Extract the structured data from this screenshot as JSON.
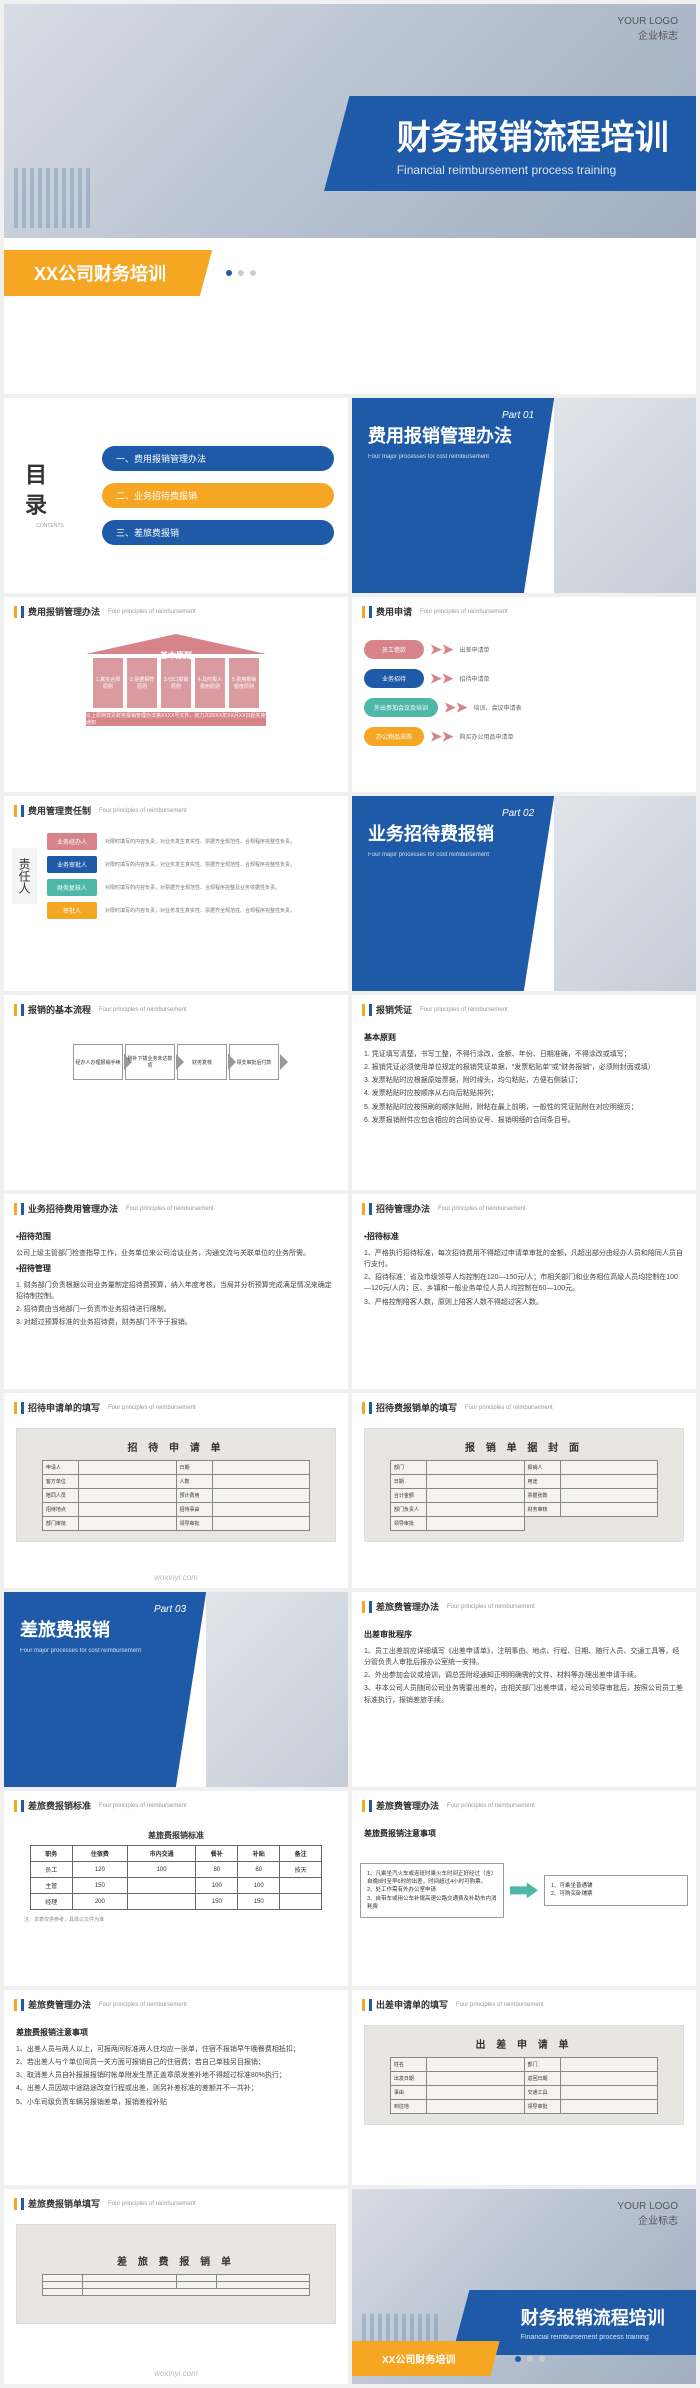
{
  "logo": {
    "line1": "YOUR LOGO",
    "line2": "企业标志"
  },
  "title": {
    "main": "财务报销流程培训",
    "sub": "Financial reimbursement process training",
    "company": "XX公司财务培训"
  },
  "toc": {
    "label": "目录",
    "contents": "CONTENTS",
    "items": [
      "一、费用报销管理办法",
      "二、业务招待费报销",
      "三、差旅费报销"
    ]
  },
  "parts": [
    {
      "num": "Part 01",
      "title": "费用报销管理办法",
      "sub": "Four major processes for cost reimbursement"
    },
    {
      "num": "Part 02",
      "title": "业务招待费报销",
      "sub": "Four major processes for cost reimbursement"
    },
    {
      "num": "Part 03",
      "title": "差旅费报销",
      "sub": "Four major processes for cost reimbursement"
    }
  ],
  "headers": {
    "s3": "费用报销管理办法",
    "s4": "费用申请",
    "s5": "费用管理责任制",
    "s7": "报销的基本流程",
    "s8": "报销凭证",
    "s9": "业务招待费用管理办法",
    "s10": "招待管理办法",
    "s11": "招待申请单的填写",
    "s12": "招待费报销单的填写",
    "s14": "差旅费管理办法",
    "s15": "差旅费报销标准",
    "s16": "差旅费管理办法",
    "s17": "差旅费管理办法",
    "s18": "出差申请单的填写",
    "s19": "差旅费报销单填写",
    "sub": "Four principles of reimbursement"
  },
  "building": {
    "roof": "基本原则",
    "pillars": [
      "1.真实合规原则",
      "2.票据相符原则",
      "3.归口报销原则",
      "4.及时报人费用原则",
      "5.费用报销额度原则"
    ],
    "base": "以上原则详见财务报销管理办法第XXXX号文件，效力2020XX年XX月XX日起实施通知"
  },
  "flow_apply": {
    "left": [
      {
        "t": "员工借款",
        "c": "#d6848a"
      },
      {
        "t": "业务招待",
        "c": "#1e5aa8"
      },
      {
        "t": "外出参加会议及培训",
        "c": "#4db8a8"
      },
      {
        "t": "办公物品采购",
        "c": "#f5a623"
      }
    ],
    "right": [
      "出差申请单",
      "招待申请单",
      "培训、会议申请表",
      "购买办公用品申请单"
    ]
  },
  "resp": {
    "label": "责任人",
    "rows": [
      {
        "tag": "业务经办人",
        "c": "#d6848a",
        "txt": "对限时填写的内容负责，对业务发生真实性、票据齐全规范性、合规程序完整性负责。"
      },
      {
        "tag": "业务审批人",
        "c": "#1e5aa8",
        "txt": "对限时填写的内容负责，对业务发生真实性、票据齐全规范性、合规程序完整性负责。"
      },
      {
        "tag": "财务复核人",
        "c": "#4db8a8",
        "txt": "对限时填写的内容负责，对票据齐全规范性、合规程序完整及业务依据性负责。"
      },
      {
        "tag": "审批人",
        "c": "#f5a623",
        "txt": "对限时填写的内容负责，对业务发生真实性、票据齐全规范性、合规程序完整性负责。"
      }
    ]
  },
  "steps": [
    "经办人办理报销手续",
    "剔补下拨业务未达款项",
    "财务复核",
    "领支审批后付款"
  ],
  "voucher": {
    "title": "基本原则",
    "items": [
      "1. 凭证填写清楚，书写工整，不得行涂改，金额、年份、日期准确，不得涂改或填写；",
      "2. 报销凭证必须使用单位规定的报销凭证单据，\"发票粘贴单\"或\"财务报销\"，必须附封面或填）",
      "3. 发票粘贴时应根据原始票据，附时缘头，均匀粘贴，方便右侧装订；",
      "4. 发票粘贴时应按顺序从右向后粘贴排列；",
      "5. 发票粘贴时应按照刷的顺序贴附，附粘在最上前明，一般性的凭证贴附在对应明细页；",
      "6. 发票报销附件应包含相应的合同协议号、报销明细的合同条目号。"
    ]
  },
  "entertain": {
    "h1": "▪招待范围",
    "p1": "公司上级主管部门检查指导工作，业务单位来公司洽谈业务，沟通交流与关联单位的业务所需。",
    "h2": "▪招待管理",
    "p2a": "1. 财务部门负责根据公司业务量制定招待费预算，纳入年度考核，当局并分析预算完成满足情况来确定招待制控制。",
    "p2b": "2. 招待费由当地部门一负责市业务招待进行限制。",
    "p2c": "3. 对超过预算标准的业务招待费，财务部门不予于报销。"
  },
  "entertain_rule": {
    "h": "▪招待标准",
    "p1": "1、严格执行招待标准，每次招待费用不得超过申请单审批的金额，凡超出部分由经办人员和陪同人员自行支付。",
    "p2": "2、招待标准：省及市级领导人均控制在120—150元/人；市相关部门和业务相位高级人员均控制在100—120元/人内；区、乡镇和一般业务单位人员人均控制在60—100元。",
    "p3": "3、严格控制陪客人数，原则上陪客人数不得超过客人数。"
  },
  "form11": {
    "title": "招 待 申 请 单",
    "cells": [
      "申请人",
      "",
      "日期",
      "",
      "客方单位",
      "",
      "人数",
      "",
      "陪同人员",
      "",
      "预计费用",
      "",
      "招待地点",
      "",
      "招待事由",
      "",
      "部门审批",
      "",
      "领导审批",
      ""
    ]
  },
  "form12": {
    "title": "报 销 单 据 封 面",
    "cells": [
      "部门",
      "",
      "报销人",
      "",
      "日期",
      "",
      "用途",
      "",
      "合计金额",
      "",
      "票据张数",
      "",
      "部门负责人",
      "",
      "财务审核",
      "",
      "领导审批",
      ""
    ]
  },
  "travel_rule": {
    "h": "出差审批程序",
    "items": [
      "1、员工出差前应详细填写《出差申请单》，注明事由、地点、行程、日期、随行人员、交通工具等，经分管负责人审批后报办公室统一安排。",
      "2、外出参加会议或培训，调总签附经通知正明明确需的文件、材料等办理出差申请手续。",
      "3、非本公司人员随同公司业务需要出差的，由相关部门出差申请，经公司领导审批后，按照公司员工差标准执行，报销差旅手续。"
    ]
  },
  "std_table": {
    "caption": "差旅费报销标准",
    "cols": [
      "职务",
      "住宿费",
      "市内交通",
      "餐补",
      "补贴",
      "备注"
    ],
    "rows": [
      [
        "员工",
        "120",
        "100",
        "80",
        "80",
        "按天"
      ],
      [
        "主管",
        "150",
        "",
        "100",
        "100",
        ""
      ],
      [
        "经理",
        "200",
        "",
        "150",
        "150",
        ""
      ]
    ],
    "note": "注：本表仅供参考，具体以文件为准"
  },
  "notice": {
    "h": "差旅费报销注意事项",
    "left": [
      "1、凡乘坐汽火车或连班时乘火车时间正好经过（含）自晚8时至早6时的出差，时间超过4小时可购票。",
      "2、处工作需有外办公室申请",
      "3、自带车或用公车补偿高速公路交通费及补助市内消耗费"
    ],
    "right": [
      "1、可乘坐普通铺",
      "",
      "2、可购买卧铺票"
    ]
  },
  "notice2": {
    "h": "差旅费报销注意事项",
    "items": [
      "1、出差人员与两人以上，可报两间标准两人住均应一张单，住宿不报销早午晚餐费相抵扣；",
      "2、若出差人与个单位同员一关方面可报销自己的住宿费；若自己单独另目报销；",
      "3、取消差人员自补报报报销时帐单附发生票正盖章原发差补地不得超过标准80%执行；",
      "4、出差人员因故中途路途改变行程或出差，则另补差标准的差额并不一共补；",
      "5、小车司级负责车辆另报销差单，报销差程补贴"
    ]
  },
  "form18": {
    "title": "出 差 申 请 单",
    "cells": [
      "姓名",
      "",
      "部门",
      "",
      "出发日期",
      "",
      "返回日期",
      "",
      "事由",
      "",
      "交通工具",
      "",
      "到往地",
      "",
      "领导审批",
      ""
    ]
  },
  "form19": {
    "title": "差 旅 费 报 销 单"
  },
  "watermark": "woxinyi.com",
  "colors": {
    "blue": "#1e5aa8",
    "yellow": "#f5a623",
    "pink": "#d6848a",
    "teal": "#4db8a8"
  }
}
